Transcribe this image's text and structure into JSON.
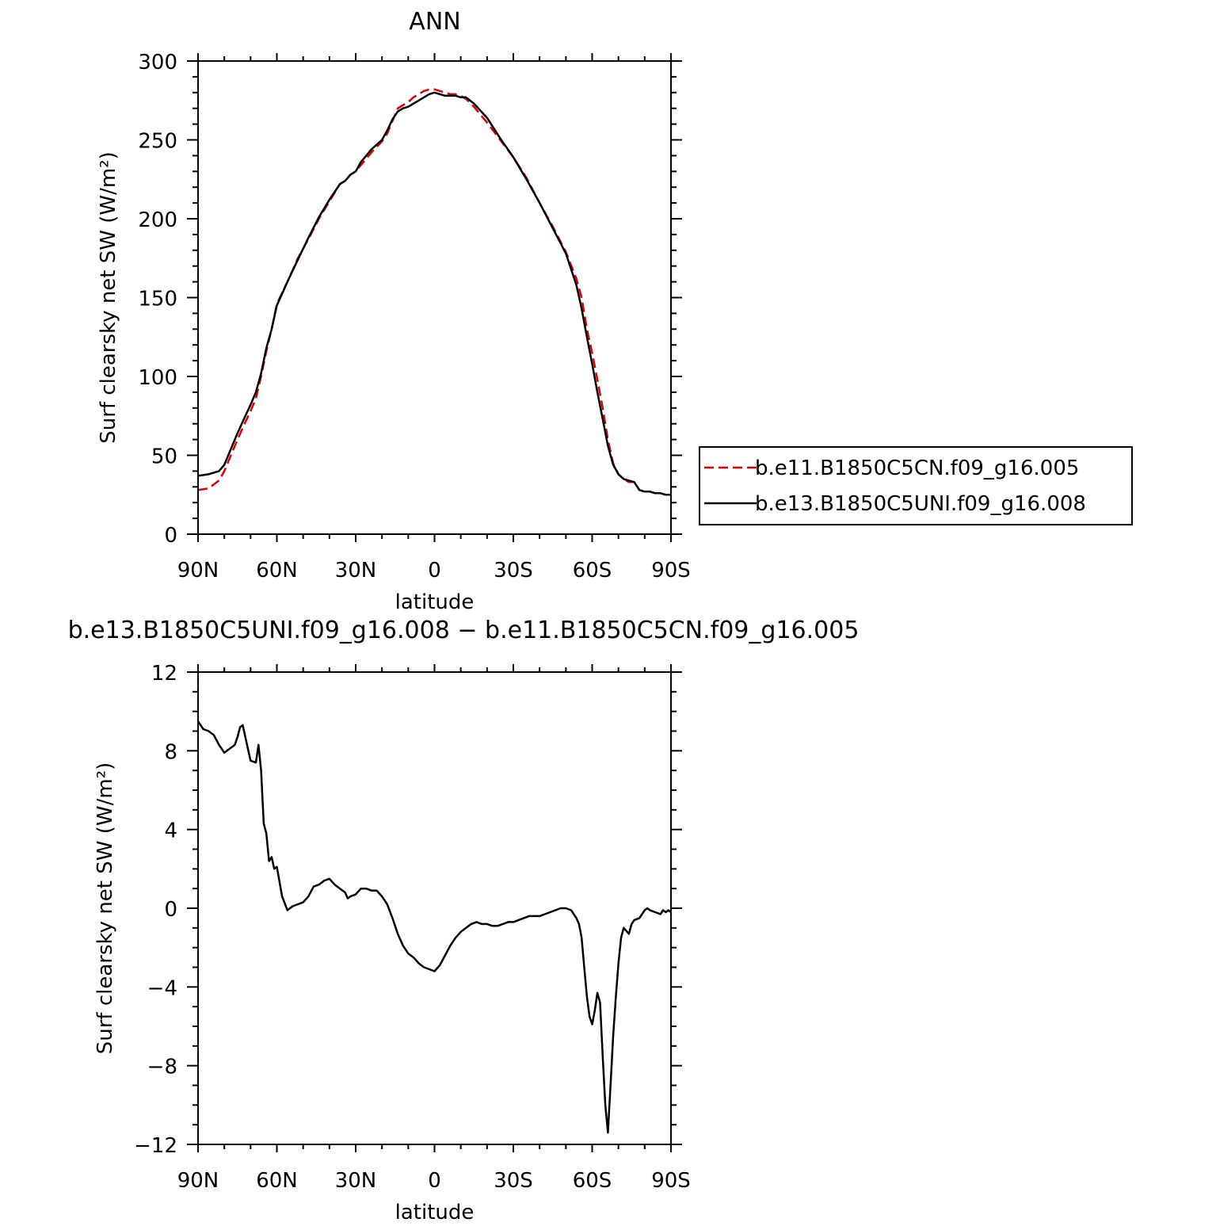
{
  "chart_data": [
    {
      "type": "line",
      "title": "ANN",
      "xlabel": "latitude",
      "ylabel": "Surf clearsky net SW (W/m²)",
      "xlim": [
        90,
        -90
      ],
      "ylim": [
        0,
        300
      ],
      "x_ticks": [
        {
          "value": 90,
          "label": "90N"
        },
        {
          "value": 60,
          "label": "60N"
        },
        {
          "value": 30,
          "label": "30N"
        },
        {
          "value": 0,
          "label": "0"
        },
        {
          "value": -30,
          "label": "30S"
        },
        {
          "value": -60,
          "label": "60S"
        },
        {
          "value": -90,
          "label": "90S"
        }
      ],
      "y_ticks": [
        {
          "value": 0,
          "label": "0"
        },
        {
          "value": 50,
          "label": "50"
        },
        {
          "value": 100,
          "label": "100"
        },
        {
          "value": 150,
          "label": "150"
        },
        {
          "value": 200,
          "label": "200"
        },
        {
          "value": 250,
          "label": "250"
        },
        {
          "value": 300,
          "label": "300"
        }
      ],
      "grid": false,
      "legend": "right",
      "x": [
        90,
        86,
        82,
        80,
        78,
        75,
        72,
        70,
        68,
        66,
        64,
        62,
        60,
        56,
        52,
        48,
        44,
        40,
        36,
        34,
        32,
        30,
        28,
        26,
        24,
        20,
        18,
        16,
        14,
        12,
        10,
        8,
        6,
        4,
        2,
        0,
        -2,
        -4,
        -6,
        -8,
        -10,
        -12,
        -15,
        -20,
        -25,
        -30,
        -35,
        -40,
        -45,
        -50,
        -54,
        -56,
        -58,
        -60,
        -62,
        -64,
        -66,
        -68,
        -70,
        -72,
        -74,
        -76,
        -78,
        -80,
        -82,
        -84,
        -86,
        -88,
        -90
      ],
      "series": [
        {
          "name": "b.e11.B1850C5CN.f09_g16.005",
          "color": "#e00000",
          "dash": true,
          "values": [
            28,
            29,
            34,
            40,
            48,
            60,
            71,
            78,
            86,
            100,
            116,
            130,
            146,
            160,
            175,
            187,
            200,
            211,
            222,
            224,
            228,
            230,
            234,
            238,
            242,
            249,
            254,
            262,
            270,
            272,
            274,
            277,
            279,
            281,
            282,
            282,
            281,
            280,
            279,
            279,
            278,
            276,
            271,
            261,
            250,
            239,
            226,
            210,
            195,
            179,
            162,
            150,
            130,
            115,
            98,
            80,
            60,
            45,
            38,
            35,
            33,
            33,
            28,
            27,
            27,
            26,
            26,
            25,
            25
          ]
        },
        {
          "name": "b.e13.B1850C5UNI.f09_g16.008",
          "color": "#000000",
          "dash": false,
          "values": [
            37,
            38,
            40,
            44,
            52,
            64,
            75,
            82,
            90,
            102,
            118,
            130,
            145,
            160,
            174,
            188,
            201,
            212,
            222,
            224,
            228,
            230,
            236,
            240,
            244,
            250,
            256,
            263,
            268,
            270,
            271,
            273,
            275,
            277,
            279,
            280,
            279,
            278,
            278,
            278,
            277,
            277,
            273,
            264,
            251,
            239,
            225,
            210,
            194,
            178,
            158,
            143,
            125,
            108,
            90,
            73,
            56,
            44,
            38,
            35,
            34,
            33,
            28,
            27,
            27,
            26,
            26,
            25,
            25
          ]
        }
      ]
    },
    {
      "type": "line",
      "title": "b.e13.B1850C5UNI.f09_g16.008 − b.e11.B1850C5CN.f09_g16.005",
      "xlabel": "latitude",
      "ylabel": "Surf clearsky net SW (W/m²)",
      "xlim": [
        90,
        -90
      ],
      "ylim": [
        -12,
        12
      ],
      "x_ticks": [
        {
          "value": 90,
          "label": "90N"
        },
        {
          "value": 60,
          "label": "60N"
        },
        {
          "value": 30,
          "label": "30N"
        },
        {
          "value": 0,
          "label": "0"
        },
        {
          "value": -30,
          "label": "30S"
        },
        {
          "value": -60,
          "label": "60S"
        },
        {
          "value": -90,
          "label": "90S"
        }
      ],
      "y_ticks": [
        {
          "value": -12,
          "label": "−12"
        },
        {
          "value": -8,
          "label": "−8"
        },
        {
          "value": -4,
          "label": "−4"
        },
        {
          "value": 0,
          "label": "0"
        },
        {
          "value": 4,
          "label": "4"
        },
        {
          "value": 8,
          "label": "8"
        },
        {
          "value": 12,
          "label": "12"
        }
      ],
      "grid": false,
      "x": [
        90,
        88,
        86,
        84,
        82,
        80,
        78,
        76,
        75,
        74,
        73,
        72,
        70,
        68,
        67,
        66,
        65,
        64,
        63,
        62,
        61,
        60,
        58,
        56,
        54,
        52,
        50,
        48,
        46,
        44,
        42,
        40,
        38,
        36,
        34,
        33,
        32,
        30,
        28,
        26,
        24,
        22,
        20,
        18,
        16,
        14,
        12,
        10,
        8,
        6,
        4,
        2,
        0,
        -2,
        -4,
        -6,
        -8,
        -10,
        -12,
        -14,
        -16,
        -18,
        -20,
        -22,
        -24,
        -26,
        -28,
        -30,
        -32,
        -34,
        -36,
        -38,
        -40,
        -42,
        -44,
        -46,
        -48,
        -50,
        -52,
        -54,
        -55,
        -56,
        -57,
        -58,
        -59,
        -60,
        -61,
        -62,
        -63,
        -64,
        -65,
        -66,
        -67,
        -68,
        -69,
        -70,
        -71,
        -72,
        -74,
        -75,
        -76,
        -78,
        -80,
        -81,
        -82,
        -84,
        -86,
        -87,
        -88,
        -89,
        -90
      ],
      "series": [
        {
          "name": "",
          "color": "#000000",
          "dash": false,
          "values": [
            9.5,
            9.1,
            9.0,
            8.8,
            8.3,
            7.9,
            8.1,
            8.3,
            8.7,
            9.2,
            9.3,
            8.7,
            7.5,
            7.4,
            8.3,
            7.0,
            4.3,
            3.8,
            2.4,
            2.6,
            2.0,
            2.1,
            0.6,
            -0.1,
            0.1,
            0.2,
            0.3,
            0.6,
            1.1,
            1.2,
            1.4,
            1.5,
            1.2,
            1.0,
            0.8,
            0.5,
            0.6,
            0.7,
            1.0,
            1.0,
            0.9,
            0.9,
            0.6,
            0.2,
            -0.5,
            -1.3,
            -1.9,
            -2.3,
            -2.5,
            -2.8,
            -3.0,
            -3.1,
            -3.2,
            -2.9,
            -2.4,
            -1.9,
            -1.5,
            -1.2,
            -1.0,
            -0.8,
            -0.7,
            -0.8,
            -0.8,
            -0.9,
            -0.9,
            -0.8,
            -0.7,
            -0.7,
            -0.6,
            -0.5,
            -0.4,
            -0.4,
            -0.4,
            -0.3,
            -0.2,
            -0.1,
            0.0,
            0.0,
            -0.1,
            -0.5,
            -0.8,
            -1.5,
            -3.0,
            -4.5,
            -5.5,
            -5.9,
            -5.2,
            -4.3,
            -4.8,
            -7.5,
            -10.0,
            -11.4,
            -9.0,
            -6.5,
            -4.5,
            -2.8,
            -1.5,
            -1.0,
            -1.3,
            -0.8,
            -0.6,
            -0.5,
            -0.1,
            0.0,
            -0.1,
            -0.2,
            -0.3,
            -0.1,
            -0.2,
            -0.1,
            -0.2
          ]
        }
      ]
    }
  ]
}
